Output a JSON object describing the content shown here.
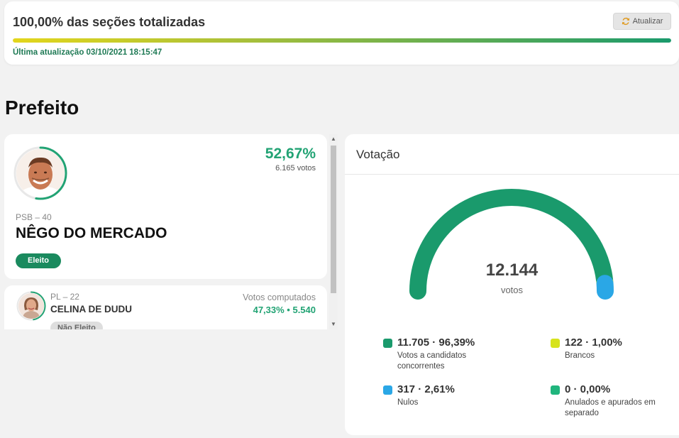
{
  "status": {
    "title": "100,00% das seções totalizadas",
    "refresh_label": "Atualizar",
    "progress_fraction": 1.0,
    "last_update": "Última atualização 03/10/2021 18:15:47"
  },
  "section": {
    "title": "Prefeito"
  },
  "candidates": [
    {
      "party": "PSB – 40",
      "name": "NÊGO DO MERCADO",
      "percent": "52,67%",
      "votes": "6.165 votos",
      "status": "Eleito",
      "ring_fraction": 0.5267
    },
    {
      "party": "PL – 22",
      "name": "CELINA DE DUDU",
      "computed_label": "Votos computados",
      "computed_value": "47,33%  •  5.540",
      "status": "Não Eleito",
      "ring_fraction": 0.4733
    }
  ],
  "votacao": {
    "title": "Votação",
    "total": "12.144",
    "total_label": "votos",
    "legend": [
      {
        "value": "11.705 · 96,39%",
        "desc": "Votos a candidatos concorrentes",
        "color": "#1a9a6c",
        "fraction": 0.9639
      },
      {
        "value": "122 · 1,00%",
        "desc": "Brancos",
        "color": "#d7e31c",
        "fraction": 0.01
      },
      {
        "value": "317 · 2,61%",
        "desc": "Nulos",
        "color": "#2aa7e6",
        "fraction": 0.0261
      },
      {
        "value": "0 · 0,00%",
        "desc": "Anulados e apurados em separado",
        "color": "#20b57d",
        "fraction": 0.0
      }
    ]
  },
  "icons": {
    "refresh": "refresh-icon",
    "scroll_up": "chevron-up-icon",
    "scroll_down": "chevron-down-icon"
  }
}
